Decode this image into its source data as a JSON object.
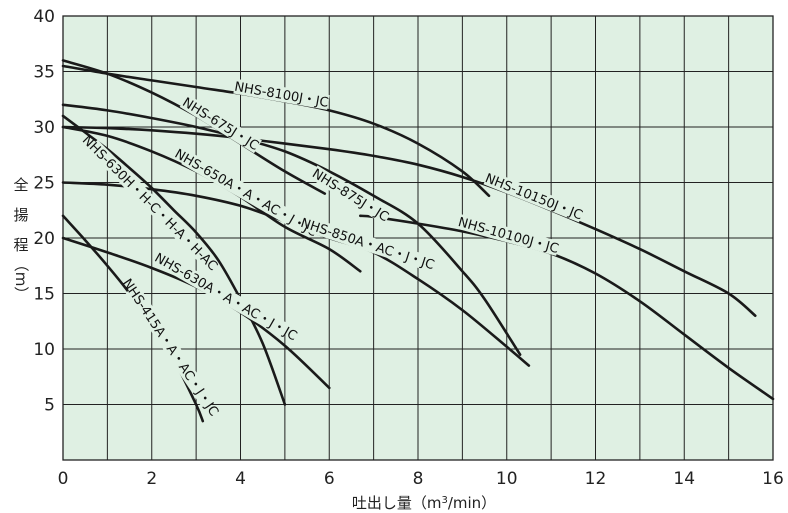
{
  "chart_data": {
    "type": "line",
    "xlabel": "吐出し量（m³/min）",
    "xlabel_parts": {
      "main": "吐出し量（m",
      "sup": "3",
      "tail": "/min）"
    },
    "ylabel": "全揚程（m）",
    "ylabel_chars": [
      "全",
      "揚",
      "程",
      "（m）"
    ],
    "xlim": [
      0,
      16
    ],
    "ylim": [
      0,
      40
    ],
    "xticks": [
      0,
      2,
      4,
      6,
      8,
      10,
      12,
      14,
      16
    ],
    "yticks": [
      5,
      10,
      15,
      20,
      25,
      30,
      35,
      40
    ],
    "grid": true,
    "colors": {
      "background": "#dff0e3",
      "grid": "#222222",
      "curve": "#1a1a1a"
    },
    "series": [
      {
        "name": "NHS-415A・A・AC・J・JC",
        "x": [
          0,
          0.5,
          1,
          1.5,
          2,
          2.5,
          3,
          3.15
        ],
        "y": [
          22,
          19.8,
          17.5,
          15,
          12,
          9,
          5,
          3.5
        ]
      },
      {
        "name": "NHS-630H・H-C・H-A・H-AC",
        "x": [
          0,
          0.5,
          1,
          1.5,
          2,
          2.5,
          3,
          3.5,
          4,
          4.5,
          5
        ],
        "y": [
          31,
          29.5,
          28,
          26.3,
          24.5,
          22.5,
          20.5,
          18,
          14.5,
          10.5,
          5
        ]
      },
      {
        "name": "NHS-630A・A・AC・J・JC",
        "x": [
          0,
          1,
          2,
          3,
          4,
          5,
          6
        ],
        "y": [
          20,
          18.7,
          17.3,
          15.6,
          13.3,
          10.3,
          6.5
        ]
      },
      {
        "name": "NHS-650A・A・AC・J・JC",
        "x": [
          0,
          1,
          2,
          3,
          4,
          5,
          6,
          6.7
        ],
        "y": [
          30,
          29.2,
          27.8,
          26,
          23.7,
          21,
          19,
          17
        ]
      },
      {
        "name": "NHS-675J・JC",
        "x": [
          0,
          1,
          2,
          3,
          4,
          5,
          5.9
        ],
        "y": [
          36,
          34.8,
          33.1,
          31,
          28.5,
          26,
          24
        ]
      },
      {
        "name": "NHS-850A・AC・J・JC",
        "x": [
          0,
          1,
          2,
          3,
          4,
          5,
          6,
          7,
          8,
          9,
          10,
          10.5
        ],
        "y": [
          25,
          24.8,
          24.4,
          23.8,
          22.9,
          21.5,
          20,
          18.7,
          16.3,
          13.5,
          10.2,
          8.5
        ]
      },
      {
        "name": "NHS-875J・JC",
        "x": [
          0,
          1,
          2,
          3,
          4,
          5,
          6,
          7,
          8,
          9,
          9.5,
          10.3
        ],
        "y": [
          32,
          31.5,
          30.8,
          30,
          29,
          27.8,
          26,
          23.8,
          21.3,
          17,
          14.5,
          9.5
        ]
      },
      {
        "name": "NHS-8100J・JC",
        "x": [
          0,
          1,
          2,
          3,
          4,
          5,
          6,
          7,
          8,
          9,
          9.6
        ],
        "y": [
          35.5,
          34.8,
          34.2,
          33.6,
          33,
          32.3,
          31.5,
          30.3,
          28.5,
          26,
          23.8
        ]
      },
      {
        "name": "NHS-10100J・JC",
        "x": [
          6.7,
          7,
          8,
          9,
          10,
          11,
          12,
          13,
          14,
          15,
          16
        ],
        "y": [
          22,
          21.9,
          21.3,
          20.6,
          19.7,
          18.6,
          16.8,
          14.3,
          11.3,
          8.3,
          5.5
        ]
      },
      {
        "name": "NHS-10150J・JC",
        "x": [
          0,
          1,
          2,
          3,
          4,
          5,
          6,
          7,
          8,
          9,
          10,
          11,
          12,
          13,
          14,
          15,
          15.6
        ],
        "y": [
          30,
          29.9,
          29.7,
          29.4,
          29,
          28.5,
          28,
          27.4,
          26.6,
          25.5,
          24.1,
          22.5,
          20.8,
          19,
          17,
          15,
          13
        ]
      }
    ]
  }
}
